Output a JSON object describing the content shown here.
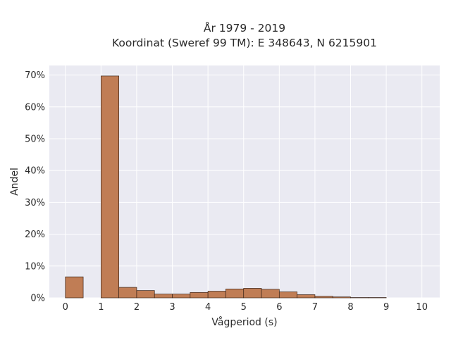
{
  "chart_data": {
    "type": "bar",
    "title_lines": [
      "År 1979 - 2019",
      "Koordinat (Sweref 99 TM): E 348643, N 6215901"
    ],
    "xlabel": "Vågperiod (s)",
    "ylabel": "Andel",
    "xlim": [
      -0.45,
      10.5
    ],
    "ylim": [
      0,
      0.73
    ],
    "x_ticks": [
      0,
      1,
      2,
      3,
      4,
      5,
      6,
      7,
      8,
      9,
      10
    ],
    "y_ticks": [
      0,
      0.1,
      0.2,
      0.3,
      0.4,
      0.5,
      0.6,
      0.7
    ],
    "y_tick_labels": [
      "0%",
      "10%",
      "20%",
      "30%",
      "40%",
      "50%",
      "60%",
      "70%"
    ],
    "grid": true,
    "bar_color": "#c07d55",
    "edge_color": "#3a2418",
    "background_color": "#eaeaf2",
    "bins": [
      {
        "x0": 0.0,
        "x1": 0.5,
        "value": 0.066
      },
      {
        "x0": 1.0,
        "x1": 1.5,
        "value": 0.697
      },
      {
        "x0": 1.5,
        "x1": 2.0,
        "value": 0.033
      },
      {
        "x0": 2.0,
        "x1": 2.5,
        "value": 0.023
      },
      {
        "x0": 2.5,
        "x1": 3.0,
        "value": 0.012
      },
      {
        "x0": 3.0,
        "x1": 3.5,
        "value": 0.012
      },
      {
        "x0": 3.5,
        "x1": 4.0,
        "value": 0.017
      },
      {
        "x0": 4.0,
        "x1": 4.5,
        "value": 0.021
      },
      {
        "x0": 4.5,
        "x1": 5.0,
        "value": 0.028
      },
      {
        "x0": 5.0,
        "x1": 5.5,
        "value": 0.03
      },
      {
        "x0": 5.5,
        "x1": 6.0,
        "value": 0.027
      },
      {
        "x0": 6.0,
        "x1": 6.5,
        "value": 0.019
      },
      {
        "x0": 6.5,
        "x1": 7.0,
        "value": 0.01
      },
      {
        "x0": 7.0,
        "x1": 7.5,
        "value": 0.005
      },
      {
        "x0": 7.5,
        "x1": 8.0,
        "value": 0.003
      },
      {
        "x0": 8.0,
        "x1": 8.5,
        "value": 0.001
      },
      {
        "x0": 8.5,
        "x1": 9.0,
        "value": 0.001
      }
    ]
  }
}
